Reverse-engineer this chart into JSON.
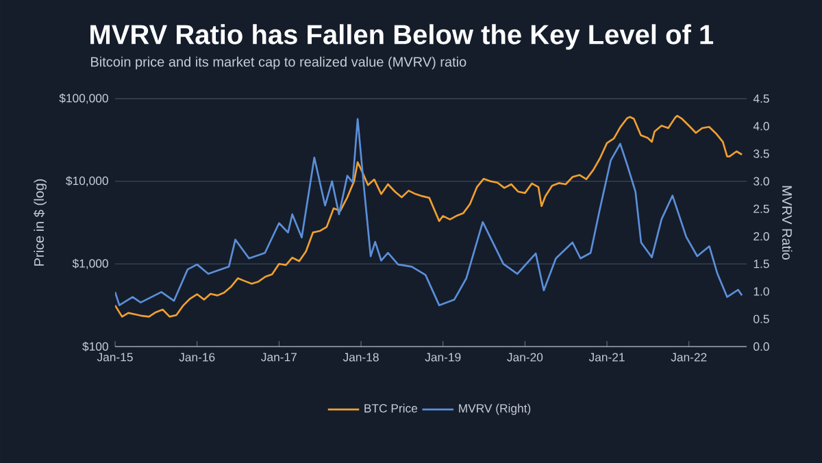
{
  "chart_data": {
    "type": "line",
    "title": "MVRV Ratio has Fallen Below the Key Level of 1",
    "subtitle": "Bitcoin price and its market cap to realized value (MVRV) ratio",
    "ylabel": "Price in $ (log)",
    "y2label": "MVRV Ratio",
    "log": "y",
    "grid": "y",
    "legend": "bottom",
    "xlim": [
      "2015-01-01",
      "2022-09-15"
    ],
    "xticks": [
      {
        "value": "2015-01-01",
        "label": "Jan-15"
      },
      {
        "value": "2016-01-01",
        "label": "Jan-16"
      },
      {
        "value": "2017-01-01",
        "label": "Jan-17"
      },
      {
        "value": "2018-01-01",
        "label": "Jan-18"
      },
      {
        "value": "2019-01-01",
        "label": "Jan-19"
      },
      {
        "value": "2020-01-01",
        "label": "Jan-20"
      },
      {
        "value": "2021-01-01",
        "label": "Jan-21"
      },
      {
        "value": "2022-01-01",
        "label": "Jan-22"
      }
    ],
    "ylim": [
      100,
      100000
    ],
    "yticks": [
      {
        "value": 100,
        "label": "$100"
      },
      {
        "value": 1000,
        "label": "$1,000"
      },
      {
        "value": 10000,
        "label": "$10,000"
      },
      {
        "value": 100000,
        "label": "$100,000"
      }
    ],
    "y2lim": [
      0,
      4.5
    ],
    "y2ticks": [
      {
        "value": 0,
        "label": "0.0"
      },
      {
        "value": 0.5,
        "label": "0.5"
      },
      {
        "value": 1,
        "label": "1.0"
      },
      {
        "value": 1.5,
        "label": "1.5"
      },
      {
        "value": 2,
        "label": "2.0"
      },
      {
        "value": 2.5,
        "label": "2.5"
      },
      {
        "value": 3,
        "label": "3.0"
      },
      {
        "value": 3.5,
        "label": "3.5"
      },
      {
        "value": 4,
        "label": "4.0"
      },
      {
        "value": 4.5,
        "label": "4.5"
      }
    ],
    "series": [
      {
        "name": "BTC Price",
        "color": "#f0a030",
        "x": [
          "2015-01-01",
          "2015-02-01",
          "2015-03-01",
          "2015-04-01",
          "2015-05-01",
          "2015-06-01",
          "2015-07-01",
          "2015-08-01",
          "2015-09-01",
          "2015-10-01",
          "2015-11-01",
          "2015-12-01",
          "2016-01-01",
          "2016-02-01",
          "2016-03-01",
          "2016-04-01",
          "2016-05-01",
          "2016-06-01",
          "2016-07-01",
          "2016-08-01",
          "2016-09-01",
          "2016-10-01",
          "2016-11-01",
          "2016-12-01",
          "2017-01-01",
          "2017-02-01",
          "2017-03-01",
          "2017-04-01",
          "2017-05-01",
          "2017-06-01",
          "2017-07-01",
          "2017-08-01",
          "2017-09-01",
          "2017-10-01",
          "2017-11-01",
          "2017-12-01",
          "2017-12-17",
          "2018-01-01",
          "2018-02-01",
          "2018-03-01",
          "2018-04-01",
          "2018-05-01",
          "2018-06-01",
          "2018-07-01",
          "2018-08-01",
          "2018-09-01",
          "2018-10-01",
          "2018-11-01",
          "2018-12-15",
          "2019-01-01",
          "2019-02-01",
          "2019-03-01",
          "2019-04-01",
          "2019-05-01",
          "2019-06-01",
          "2019-07-01",
          "2019-08-01",
          "2019-09-01",
          "2019-10-01",
          "2019-11-01",
          "2019-12-01",
          "2020-01-01",
          "2020-02-01",
          "2020-03-01",
          "2020-03-15",
          "2020-04-01",
          "2020-05-01",
          "2020-06-01",
          "2020-07-01",
          "2020-08-01",
          "2020-09-01",
          "2020-10-01",
          "2020-11-01",
          "2020-12-01",
          "2021-01-01",
          "2021-02-01",
          "2021-03-01",
          "2021-04-01",
          "2021-04-14",
          "2021-05-01",
          "2021-06-01",
          "2021-07-01",
          "2021-07-20",
          "2021-08-01",
          "2021-09-01",
          "2021-10-01",
          "2021-11-01",
          "2021-11-10",
          "2021-12-01",
          "2022-01-01",
          "2022-02-01",
          "2022-03-01",
          "2022-04-01",
          "2022-05-01",
          "2022-06-01",
          "2022-06-20",
          "2022-07-01",
          "2022-08-01",
          "2022-08-25"
        ],
        "values": [
          315,
          230,
          255,
          245,
          235,
          230,
          260,
          280,
          230,
          240,
          315,
          380,
          430,
          370,
          435,
          415,
          450,
          530,
          670,
          620,
          575,
          610,
          700,
          750,
          1000,
          970,
          1190,
          1080,
          1420,
          2400,
          2500,
          2800,
          4700,
          4400,
          6400,
          10000,
          17000,
          14000,
          9000,
          10500,
          7000,
          9200,
          7500,
          6400,
          7700,
          7000,
          6600,
          6300,
          3300,
          3800,
          3450,
          3800,
          4100,
          5300,
          8500,
          10700,
          10000,
          9600,
          8300,
          9200,
          7500,
          7200,
          9400,
          8500,
          5000,
          6600,
          8800,
          9500,
          9200,
          11300,
          11900,
          10600,
          13700,
          19000,
          29000,
          33000,
          45000,
          58000,
          60000,
          57000,
          36000,
          33500,
          30000,
          40000,
          47000,
          44000,
          59000,
          62000,
          57000,
          47000,
          38500,
          44000,
          45500,
          38000,
          30000,
          20000,
          20000,
          23000,
          21000
        ]
      },
      {
        "name": "MVRV (Right)",
        "color": "#5b8fd9",
        "axis": "y2",
        "x": [
          "2015-01-01",
          "2015-01-20",
          "2015-03-20",
          "2015-04-25",
          "2015-07-26",
          "2015-09-20",
          "2015-11-20",
          "2016-01-01",
          "2016-02-20",
          "2016-05-22",
          "2016-06-20",
          "2016-08-20",
          "2016-10-30",
          "2017-01-01",
          "2017-02-10",
          "2017-03-01",
          "2017-04-12",
          "2017-06-07",
          "2017-07-25",
          "2017-08-25",
          "2017-09-25",
          "2017-11-01",
          "2017-11-25",
          "2017-12-17",
          "2018-01-12",
          "2018-02-13",
          "2018-03-05",
          "2018-04-01",
          "2018-05-01",
          "2018-06-15",
          "2018-08-15",
          "2018-10-15",
          "2018-12-15",
          "2019-02-20",
          "2019-04-15",
          "2019-06-27",
          "2019-09-27",
          "2019-11-28",
          "2020-02-18",
          "2020-03-25",
          "2020-05-18",
          "2020-07-31",
          "2020-09-05",
          "2020-10-20",
          "2020-11-30",
          "2021-01-18",
          "2021-03-01",
          "2021-04-01",
          "2021-05-08",
          "2021-06-02",
          "2021-07-20",
          "2021-09-01",
          "2021-10-20",
          "2021-12-20",
          "2022-02-07",
          "2022-04-02",
          "2022-05-08",
          "2022-06-20",
          "2022-08-08",
          "2022-08-25"
        ],
        "values": [
          0.99,
          0.75,
          0.9,
          0.8,
          0.99,
          0.83,
          1.4,
          1.49,
          1.32,
          1.45,
          1.94,
          1.6,
          1.7,
          2.24,
          2.07,
          2.4,
          1.98,
          3.43,
          2.56,
          3.0,
          2.4,
          3.1,
          2.98,
          4.13,
          2.98,
          1.64,
          1.9,
          1.56,
          1.7,
          1.49,
          1.45,
          1.3,
          0.75,
          0.85,
          1.24,
          2.26,
          1.5,
          1.32,
          1.69,
          1.02,
          1.6,
          1.89,
          1.6,
          1.7,
          2.49,
          3.38,
          3.68,
          3.3,
          2.81,
          1.89,
          1.62,
          2.31,
          2.74,
          1.99,
          1.64,
          1.82,
          1.32,
          0.9,
          1.03,
          0.93
        ]
      }
    ]
  }
}
